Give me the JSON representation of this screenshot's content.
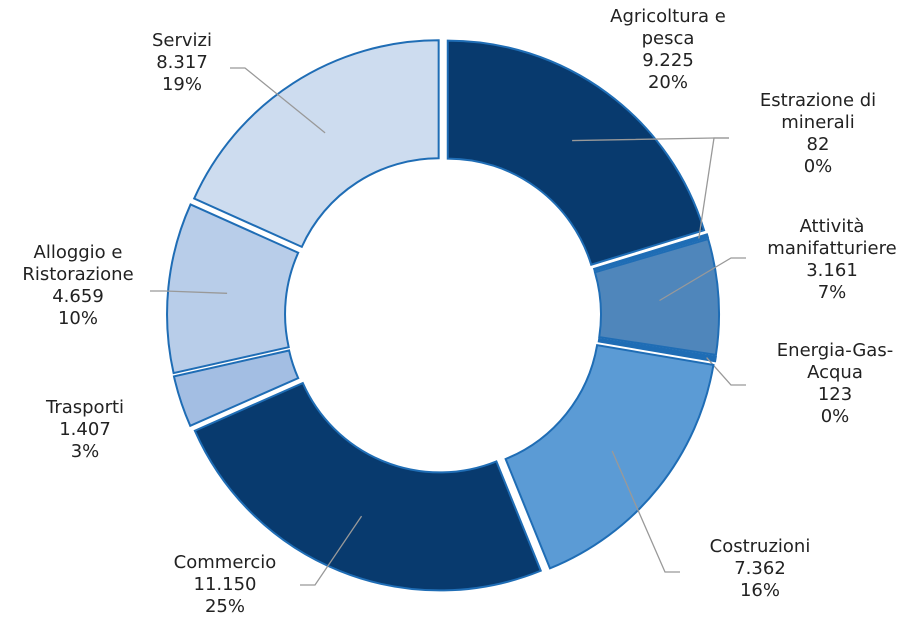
{
  "chart_data": {
    "type": "donut",
    "categories": [
      "Agricoltura e pesca",
      "Estrazione di minerali",
      "Attività manifatturiere",
      "Energia-Gas-Acqua",
      "Costruzioni",
      "Commercio",
      "Trasporti",
      "Alloggio e Ristorazione",
      "Servizi"
    ],
    "values": [
      9225,
      82,
      3161,
      123,
      7362,
      11150,
      1407,
      4659,
      8317
    ],
    "value_labels": [
      "9.225",
      "82",
      "3.161",
      "123",
      "7.362",
      "11.150",
      "1.407",
      "4.659",
      "8.317"
    ],
    "percent_labels": [
      "20%",
      "0%",
      "7%",
      "0%",
      "16%",
      "25%",
      "3%",
      "10%",
      "19%"
    ],
    "colors": [
      "#083a6e",
      "#1f6db5",
      "#4f86bb",
      "#1f6db5",
      "#5b9bd5",
      "#083a6e",
      "#a3bee3",
      "#b8cde9",
      "#cddcef"
    ]
  }
}
